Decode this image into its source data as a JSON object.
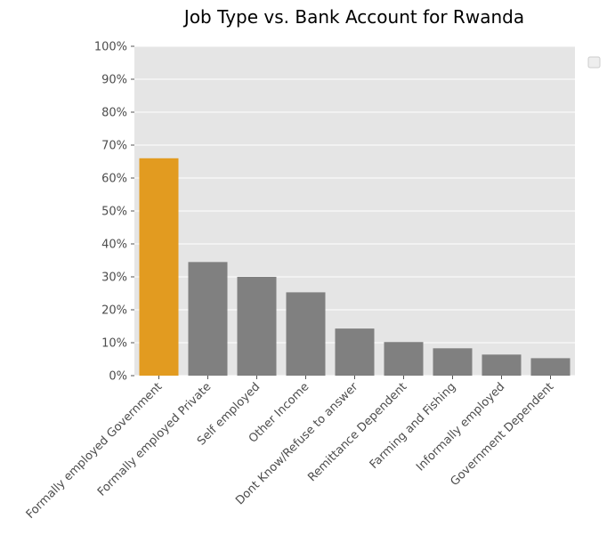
{
  "chart_data": {
    "type": "bar",
    "title": "Job Type vs. Bank Account for Rwanda",
    "xlabel": "",
    "ylabel": "",
    "categories": [
      "Formally employed Government",
      "Formally employed Private",
      "Self employed",
      "Other Income",
      "Dont Know/Refuse to answer",
      "Remittance Dependent",
      "Farming and Fishing",
      "Informally employed",
      "Government Dependent"
    ],
    "values": [
      66,
      34.5,
      30,
      25.3,
      14.3,
      10.2,
      8.3,
      6.4,
      5.3
    ],
    "ylim": [
      0,
      100
    ],
    "yticks": [
      "0%",
      "10%",
      "20%",
      "30%",
      "40%",
      "50%",
      "60%",
      "70%",
      "80%",
      "90%",
      "100%"
    ],
    "ytick_values": [
      0,
      10,
      20,
      30,
      40,
      50,
      60,
      70,
      80,
      90,
      100
    ],
    "grid": true,
    "legend": "top-right (empty)",
    "colors": {
      "highlight": "#e29b20",
      "default": "#808080",
      "plot_bg": "#e5e5e5",
      "grid": "#ffffff",
      "axis_text": "#4d4d4d"
    },
    "highlight_index": 0
  }
}
